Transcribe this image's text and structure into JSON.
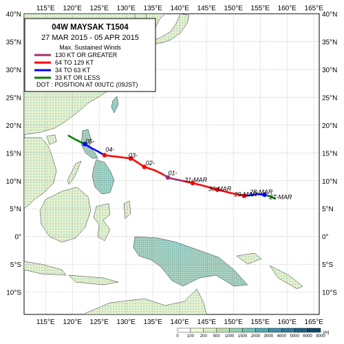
{
  "title": {
    "line1": "04W  MAYSAK  T1504",
    "line2": "27 MAR 2015 - 05 APR 2015"
  },
  "legend": {
    "heading": "Max. Sustained Winds",
    "items": [
      {
        "label": "130 KT OR GREATER",
        "color": "#a0306e"
      },
      {
        "label": "64 TO 129 KT",
        "color": "#ff0000"
      },
      {
        "label": "34 TO 63 KT",
        "color": "#0000ff"
      },
      {
        "label": "33 KT OR LESS",
        "color": "#008000"
      }
    ],
    "note": "DOT : POSITION AT 00UTC (09JST)"
  },
  "axes": {
    "lon_labels": [
      "115°E",
      "120°E",
      "125°E",
      "130°E",
      "135°E",
      "140°E",
      "145°E",
      "150°E",
      "155°E",
      "160°E",
      "165°E"
    ],
    "lat_labels": [
      "40°N",
      "35°N",
      "30°N",
      "25°N",
      "20°N",
      "15°N",
      "10°N",
      "5°N",
      "0°",
      "5°S",
      "10°S"
    ],
    "lon_range": [
      111,
      166
    ],
    "lat_range": [
      -14,
      40
    ]
  },
  "track": {
    "labels": [
      {
        "text": "27-MAR",
        "lon": 158.8,
        "lat": 6.7
      },
      {
        "text": "28-MAR",
        "lon": 155.2,
        "lat": 7.6
      },
      {
        "text": "29-MAR",
        "lon": 152.3,
        "lat": 7.2
      },
      {
        "text": "30-MAR",
        "lon": 147.5,
        "lat": 8.2
      },
      {
        "text": "31-MAR",
        "lon": 143.0,
        "lat": 9.8
      },
      {
        "text": "01-",
        "lon": 138.7,
        "lat": 11.0
      },
      {
        "text": "02-",
        "lon": 134.5,
        "lat": 12.8
      },
      {
        "text": "03-",
        "lon": 131.3,
        "lat": 14.2
      },
      {
        "text": "04-",
        "lon": 127.0,
        "lat": 15.2
      },
      {
        "text": "05-",
        "lon": 123.3,
        "lat": 16.7
      }
    ],
    "segments": [
      {
        "category": "33 KT OR LESS",
        "color": "#008000",
        "points": [
          [
            157.8,
            6.8
          ],
          [
            156.8,
            7.2
          ],
          [
            155.8,
            7.5
          ]
        ]
      },
      {
        "category": "34 TO 63 KT",
        "color": "#0000ff",
        "points": [
          [
            155.8,
            7.5
          ],
          [
            154.5,
            7.6
          ],
          [
            153.3,
            7.4
          ],
          [
            152.0,
            7.3
          ]
        ]
      },
      {
        "category": "64 TO 129 KT",
        "color": "#ff0000",
        "points": [
          [
            152.0,
            7.3
          ],
          [
            150.0,
            7.7
          ],
          [
            147.0,
            8.4
          ],
          [
            144.5,
            9.1
          ],
          [
            142.4,
            9.6
          ],
          [
            140.5,
            10.0
          ]
        ]
      },
      {
        "category": "130 KT OR GREATER",
        "color": "#a0306e",
        "points": [
          [
            140.5,
            10.0
          ],
          [
            138.0,
            10.5
          ],
          [
            136.8,
            11.2
          ]
        ]
      },
      {
        "category": "64 TO 129 KT",
        "color": "#ff0000",
        "points": [
          [
            136.8,
            11.2
          ],
          [
            135.3,
            11.9
          ],
          [
            133.4,
            12.5
          ],
          [
            131.0,
            14.0
          ],
          [
            128.5,
            14.3
          ],
          [
            126.0,
            14.6
          ]
        ]
      },
      {
        "category": "34 TO 63 KT",
        "color": "#0000ff",
        "points": [
          [
            126.0,
            14.6
          ],
          [
            124.7,
            15.3
          ],
          [
            123.5,
            15.9
          ],
          [
            122.3,
            16.6
          ]
        ]
      },
      {
        "category": "33 KT OR LESS",
        "color": "#008000",
        "points": [
          [
            122.3,
            16.6
          ],
          [
            120.8,
            17.3
          ],
          [
            119.3,
            18.1
          ]
        ]
      }
    ],
    "dots": [
      {
        "lon": 155.8,
        "lat": 7.5,
        "color": "#0000ff"
      },
      {
        "lon": 152.0,
        "lat": 7.3,
        "color": "#ff0000"
      },
      {
        "lon": 147.0,
        "lat": 8.4,
        "color": "#ff0000"
      },
      {
        "lon": 142.4,
        "lat": 9.6,
        "color": "#ff0000"
      },
      {
        "lon": 137.8,
        "lat": 10.6,
        "color": "#a0306e"
      },
      {
        "lon": 133.4,
        "lat": 12.5,
        "color": "#ff0000"
      },
      {
        "lon": 130.9,
        "lat": 14.0,
        "color": "#ff0000"
      },
      {
        "lon": 126.0,
        "lat": 14.6,
        "color": "#ff0000"
      },
      {
        "lon": 122.3,
        "lat": 16.6,
        "color": "#0000ff"
      }
    ]
  },
  "elevation_scale": {
    "unit": "[m]",
    "ticks": [
      "0",
      "100",
      "200",
      "500",
      "1000",
      "1500",
      "2000",
      "3000",
      "4000",
      "5000",
      "6000",
      "8000"
    ],
    "colors": [
      "#ffffff",
      "#f0f8d8",
      "#d8f0c0",
      "#b8e0a8",
      "#90d0b0",
      "#70c0b8",
      "#50a8b0",
      "#4090a8",
      "#307898",
      "#206080",
      "#104868"
    ]
  }
}
